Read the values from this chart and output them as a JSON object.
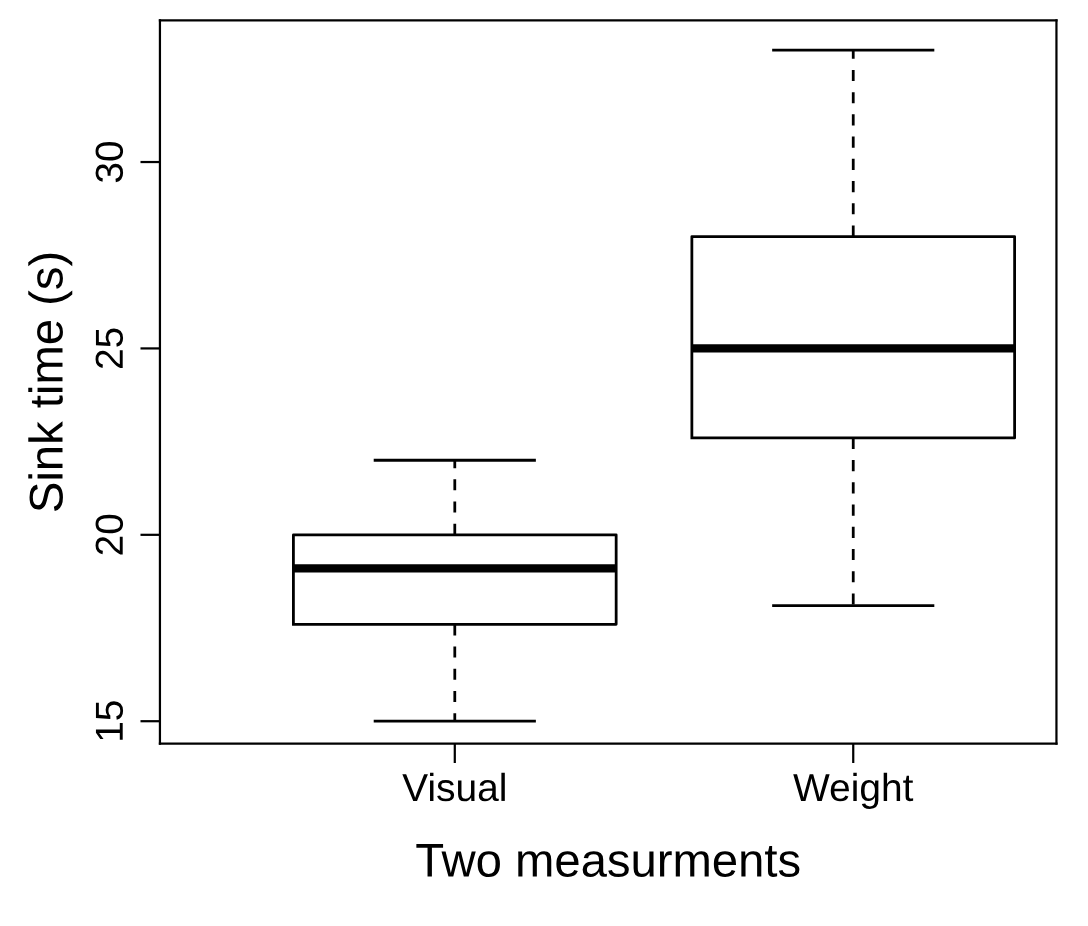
{
  "chart_data": {
    "type": "box",
    "xlabel": "Two measurments",
    "ylabel": "Sink time (s)",
    "categories": [
      "Visual",
      "Weight"
    ],
    "boxes": [
      {
        "low": 15,
        "q1": 17.6,
        "median": 19.1,
        "q3": 20,
        "high": 22
      },
      {
        "low": 18.1,
        "q1": 22.6,
        "median": 25,
        "q3": 28,
        "high": 33
      }
    ],
    "ylim": [
      14.4,
      33.8
    ],
    "yticks": [
      15,
      20,
      25,
      30
    ],
    "grid": false
  }
}
